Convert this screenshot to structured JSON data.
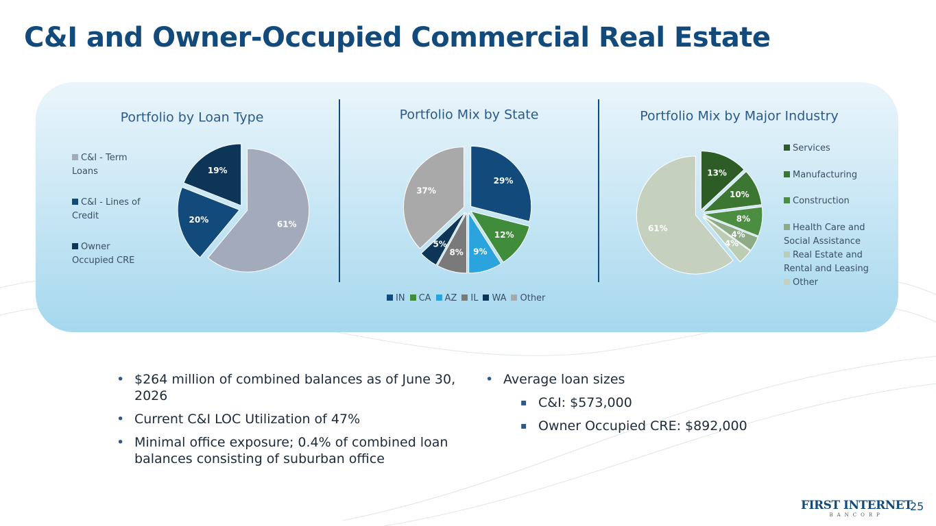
{
  "title": "C&I and Owner-Occupied Commercial Real Estate",
  "chart_data": [
    {
      "type": "pie",
      "title": "Portfolio by Loan Type",
      "legend": "left",
      "categories": [
        "C&I - Term Loans",
        "C&I - Lines of Credit",
        "Owner Occupied CRE"
      ],
      "values": [
        61,
        20,
        19
      ],
      "value_labels": [
        "61%",
        "20%",
        "19%"
      ],
      "colors": [
        "#a3aabb",
        "#124a7c",
        "#0d3558"
      ]
    },
    {
      "type": "pie",
      "title": "Portfolio Mix by State",
      "legend": "bottom",
      "categories": [
        "IN",
        "CA",
        "AZ",
        "IL",
        "WA",
        "Other"
      ],
      "values": [
        29,
        12,
        9,
        8,
        5,
        37
      ],
      "value_labels": [
        "29%",
        "12%",
        "9%",
        "8%",
        "5%",
        "37%"
      ],
      "colors": [
        "#124a7c",
        "#3f8c3a",
        "#2ba4de",
        "#7a7a7a",
        "#0d3558",
        "#a9a9a9"
      ]
    },
    {
      "type": "pie",
      "title": "Portfolio Mix by Major Industry",
      "legend": "right",
      "categories": [
        "Services",
        "Manufacturing",
        "Construction",
        "Health Care and Social Assistance",
        "Real Estate and Rental and Leasing",
        "Other"
      ],
      "values": [
        13,
        10,
        8,
        4,
        4,
        61
      ],
      "value_labels": [
        "13%",
        "10%",
        "8%",
        "4%",
        "4%",
        "61%"
      ],
      "colors": [
        "#2d5c27",
        "#3b7633",
        "#4c8e41",
        "#8fab85",
        "#bccdb3",
        "#c6d0bf"
      ]
    }
  ],
  "bullets_left": [
    "$264 million of combined balances as of June 30, 2026",
    "Current C&I LOC Utilization of 47%",
    "Minimal office exposure; 0.4% of combined loan balances consisting of suburban office"
  ],
  "bullets_right": {
    "text": "Average loan sizes",
    "sub": [
      "C&I: $573,000",
      "Owner Occupied CRE: $892,000"
    ]
  },
  "logo": {
    "name": "FIRST INTERNET",
    "sub": "BANCORP"
  },
  "page_number": 25
}
